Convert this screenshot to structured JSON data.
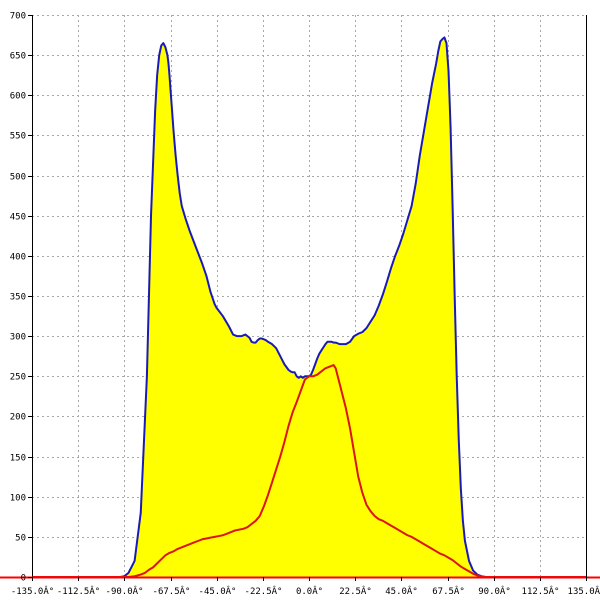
{
  "chart_data": {
    "type": "area",
    "title": "",
    "xlabel": "",
    "ylabel": "",
    "xlim": [
      -135,
      135
    ],
    "ylim": [
      0,
      700
    ],
    "grid": true,
    "x_ticks": [
      -135,
      -112.5,
      -90,
      -67.5,
      -45,
      -22.5,
      0,
      22.5,
      45,
      67.5,
      90,
      112.5,
      135
    ],
    "x_tick_labels": [
      "-135.0Â°",
      "-112.5Â°",
      "-90.0Â°",
      "-67.5Â°",
      "-45.0Â°",
      "-22.5Â°",
      "0.0Â°",
      "22.5Â°",
      "45.0Â°",
      "67.5Â°",
      "90.0Â°",
      "112.5Â°",
      "135.0Â°"
    ],
    "y_ticks": [
      0,
      50,
      100,
      150,
      200,
      250,
      300,
      350,
      400,
      450,
      500,
      550,
      600,
      650,
      700
    ],
    "y_tick_labels": [
      "0",
      "50",
      "100",
      "150",
      "200",
      "250",
      "300",
      "350",
      "400",
      "450",
      "500",
      "550",
      "600",
      "650",
      "700"
    ],
    "series": [
      {
        "color": "#1a1ab8",
        "fill": "#ffff00",
        "x": [
          -135,
          -92,
          -90,
          -88,
          -85,
          -82,
          -79,
          -77,
          -75,
          -74,
          -73,
          -72,
          -71,
          -70,
          -69,
          -68.5,
          -68,
          -67,
          -66,
          -65,
          -64,
          -63,
          -62,
          -60,
          -58,
          -55,
          -52,
          -50,
          -48,
          -46,
          -45,
          -42,
          -39,
          -37,
          -35,
          -33,
          -31,
          -29,
          -28,
          -27,
          -26,
          -25,
          -24,
          -23,
          -22,
          -21,
          -20,
          -18,
          -16,
          -14,
          -12,
          -10,
          -9,
          -8,
          -7,
          -6,
          -5,
          -4,
          -3,
          -2,
          -1,
          0,
          1,
          2,
          3,
          4,
          5,
          6,
          7,
          8,
          9,
          10,
          11,
          12,
          13,
          14,
          15,
          16,
          18,
          20,
          22,
          24,
          26,
          28,
          30,
          32,
          34,
          36,
          38,
          40,
          42,
          44,
          46,
          48,
          50,
          52,
          54,
          56,
          58,
          60,
          62,
          63,
          64,
          65,
          66,
          67,
          68,
          69,
          70,
          71,
          72,
          73,
          74,
          75,
          76,
          78,
          80,
          82,
          84,
          86,
          88,
          90,
          92,
          135
        ],
        "y": [
          0,
          0,
          1,
          5,
          20,
          80,
          250,
          450,
          580,
          625,
          650,
          662,
          665,
          660,
          650,
          640,
          625,
          590,
          555,
          525,
          500,
          478,
          462,
          445,
          430,
          410,
          390,
          375,
          355,
          340,
          335,
          325,
          312,
          302,
          300,
          300,
          302,
          298,
          293,
          292,
          292,
          295,
          297,
          297,
          296,
          295,
          293,
          290,
          285,
          275,
          265,
          258,
          256,
          255,
          255,
          250,
          248,
          250,
          248,
          250,
          250,
          250,
          252,
          258,
          265,
          272,
          278,
          282,
          286,
          290,
          293,
          293,
          293,
          292,
          292,
          291,
          290,
          290,
          290,
          293,
          300,
          303,
          305,
          310,
          318,
          326,
          338,
          352,
          368,
          385,
          400,
          413,
          428,
          445,
          462,
          490,
          525,
          555,
          585,
          615,
          640,
          655,
          667,
          670,
          672,
          665,
          630,
          560,
          460,
          350,
          250,
          170,
          110,
          70,
          45,
          20,
          8,
          3,
          1,
          0,
          0,
          0,
          0,
          0
        ]
      },
      {
        "color": "#dc1414",
        "x": [
          -135,
          -92,
          -88,
          -85,
          -82,
          -80,
          -78,
          -76,
          -74,
          -72,
          -70,
          -68,
          -66,
          -64,
          -62,
          -60,
          -58,
          -56,
          -54,
          -52,
          -50,
          -48,
          -46,
          -44,
          -42,
          -40,
          -38,
          -36,
          -34,
          -32,
          -30,
          -28,
          -26,
          -24,
          -22,
          -20,
          -18,
          -16,
          -14,
          -12,
          -10,
          -8,
          -6,
          -4,
          -2,
          0,
          2,
          4,
          6,
          8,
          10,
          12,
          13,
          14,
          15,
          16,
          18,
          20,
          22,
          24,
          26,
          28,
          30,
          32,
          34,
          36,
          38,
          40,
          42,
          44,
          46,
          48,
          50,
          52,
          54,
          56,
          58,
          60,
          62,
          64,
          66,
          68,
          70,
          72,
          74,
          76,
          78,
          80,
          82,
          84,
          86,
          88,
          90,
          135
        ],
        "y": [
          0,
          0,
          0,
          1,
          3,
          5,
          9,
          12,
          17,
          22,
          27,
          30,
          32,
          35,
          37,
          39,
          41,
          43,
          45,
          47,
          48,
          49,
          50,
          51,
          52,
          54,
          56,
          58,
          59,
          60,
          62,
          66,
          70,
          76,
          88,
          102,
          118,
          134,
          150,
          168,
          188,
          205,
          218,
          232,
          246,
          250,
          250,
          252,
          256,
          260,
          262,
          264,
          260,
          250,
          240,
          230,
          210,
          185,
          155,
          125,
          105,
          90,
          82,
          76,
          72,
          70,
          67,
          64,
          61,
          58,
          55,
          52,
          50,
          47,
          44,
          41,
          38,
          35,
          32,
          29,
          27,
          24,
          21,
          17,
          13,
          10,
          7,
          4,
          2,
          1,
          0,
          0,
          0,
          0
        ]
      }
    ]
  }
}
